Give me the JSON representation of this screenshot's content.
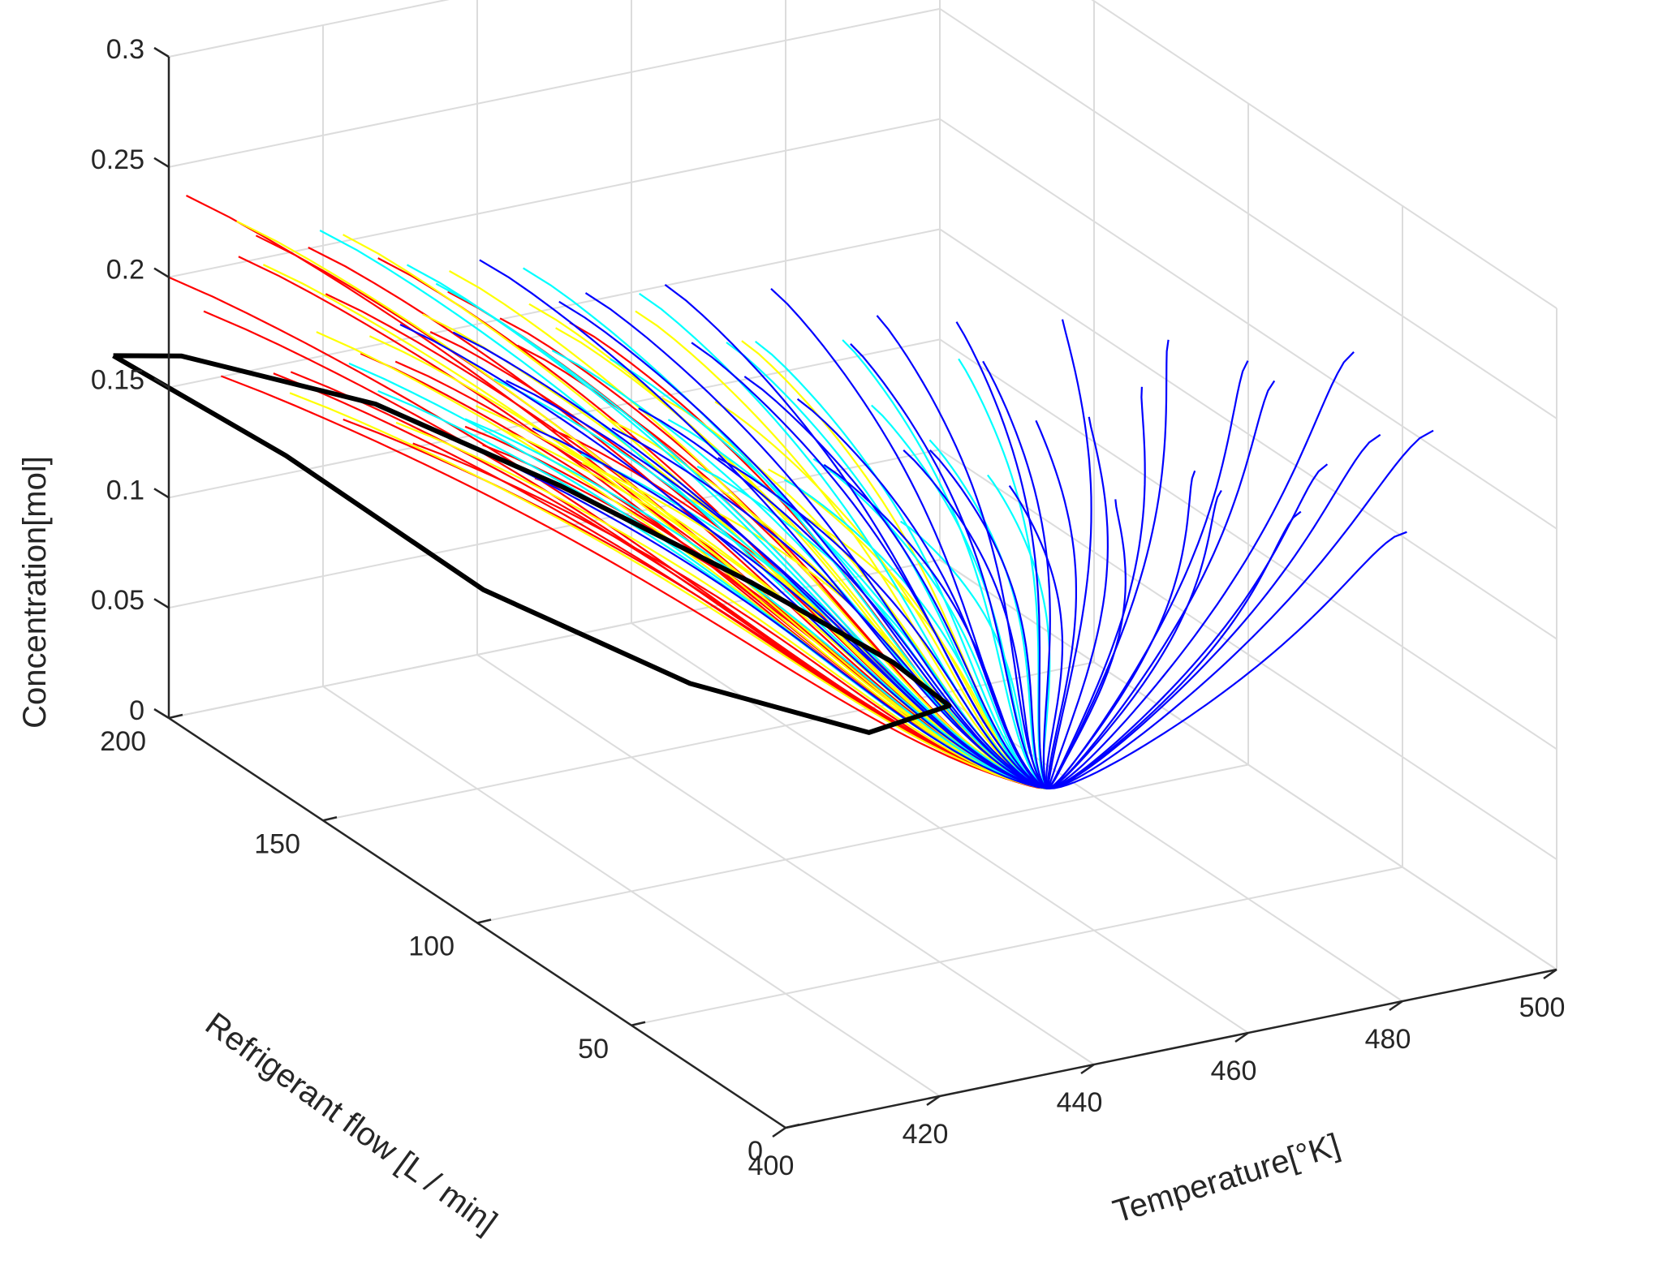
{
  "chart_data": {
    "type": "line",
    "projection": "3d",
    "title": "",
    "xlabel": "Temperature[°K]",
    "ylabel": "Refrigerant flow [L / min]",
    "zlabel": "Concentration[mol]",
    "xlim": [
      400,
      500
    ],
    "ylim": [
      0,
      200
    ],
    "zlim": [
      0,
      0.3
    ],
    "x_ticks": [
      "400",
      "420",
      "440",
      "460",
      "480",
      "500"
    ],
    "y_ticks": [
      "0",
      "50",
      "100",
      "150",
      "200"
    ],
    "z_ticks": [
      "0",
      "0.05",
      "0.1",
      "0.15",
      "0.2",
      "0.25",
      "0.3"
    ],
    "grid": true,
    "background": "#ffffff",
    "grid_color": "#dcdcdc",
    "axis_color": "#262626",
    "series": [
      {
        "color": "#ff0000",
        "band": [
          [
            400,
            200
          ],
          [
            420,
            120
          ]
        ],
        "count": 24
      },
      {
        "color": "#ffff00",
        "band": [
          [
            404,
            188
          ],
          [
            438,
            92
          ]
        ],
        "count": 22
      },
      {
        "color": "#00ffff",
        "band": [
          [
            410,
            176
          ],
          [
            455,
            72
          ]
        ],
        "count": 24
      },
      {
        "color": "#0000ff",
        "band": [
          [
            414,
            160
          ],
          [
            500,
            40
          ]
        ],
        "count": 40
      }
    ],
    "cycle": {
      "color": "#000000",
      "points": [
        [
          392,
          198,
          0.172
        ],
        [
          400,
          196,
          0.168
        ],
        [
          418,
          178,
          0.15
        ],
        [
          434,
          158,
          0.12
        ],
        [
          450,
          136,
          0.085
        ],
        [
          462,
          120,
          0.055
        ],
        [
          466,
          112,
          0.04
        ],
        [
          458,
          118,
          0.028
        ],
        [
          442,
          136,
          0.045
        ],
        [
          424,
          158,
          0.08
        ],
        [
          408,
          182,
          0.13
        ],
        [
          392,
          198,
          0.172
        ]
      ]
    }
  }
}
